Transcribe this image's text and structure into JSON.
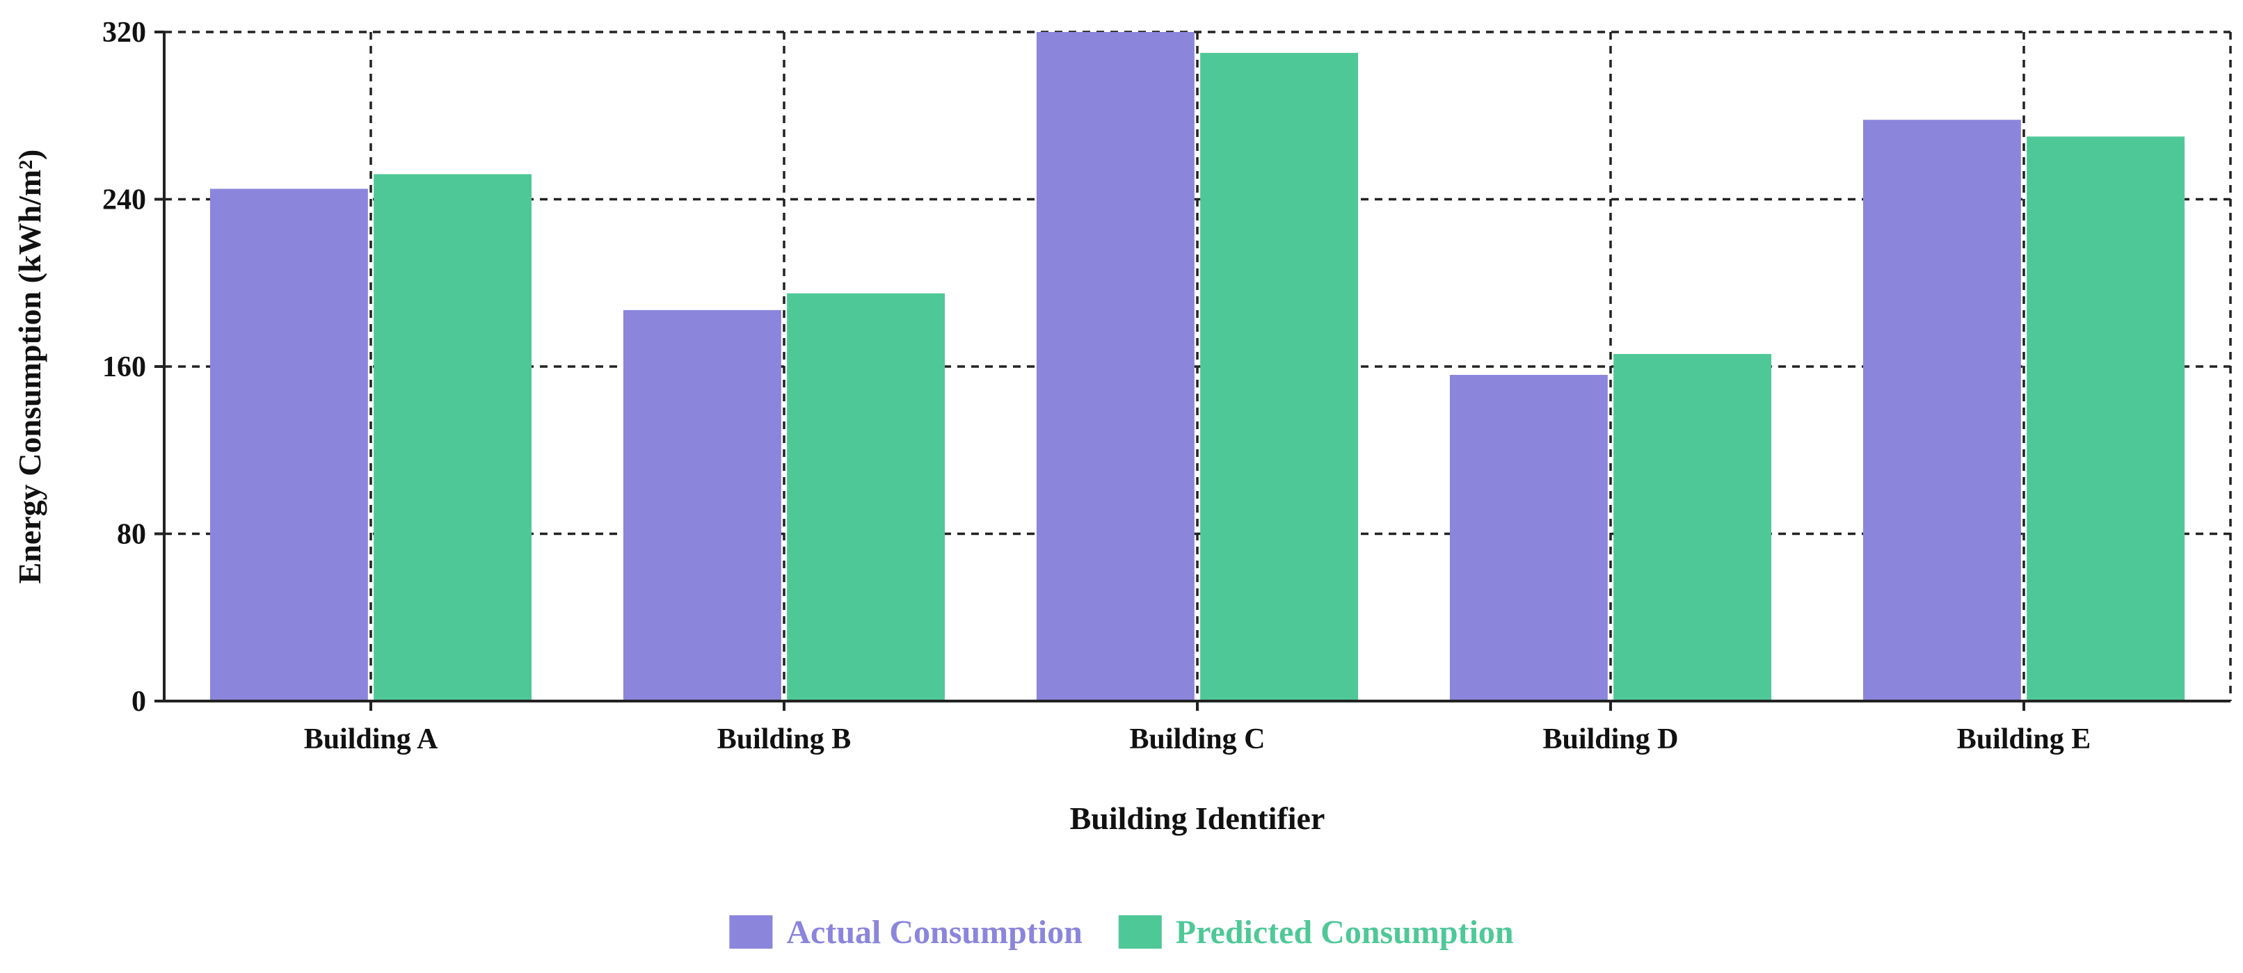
{
  "chart_data": {
    "type": "bar",
    "title": "",
    "xlabel": "Building Identifier",
    "ylabel": "Energy Consumption (kWh/m²)",
    "categories": [
      "Building A",
      "Building B",
      "Building C",
      "Building D",
      "Building E"
    ],
    "series": [
      {
        "name": "Actual Consumption",
        "color": "#8b85dc",
        "values": [
          245,
          187,
          320,
          156,
          278
        ]
      },
      {
        "name": "Predicted Consumption",
        "color": "#4fc898",
        "values": [
          252,
          195,
          310,
          166,
          270
        ]
      }
    ],
    "ylim": [
      0,
      320
    ],
    "yticks": [
      0,
      80,
      160,
      240,
      320
    ],
    "grid": true,
    "legend_position": "bottom-center"
  }
}
